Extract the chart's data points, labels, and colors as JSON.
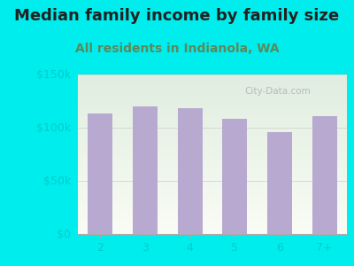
{
  "title": "Median family income by family size",
  "subtitle": "All residents in Indianola, WA",
  "categories": [
    "2",
    "3",
    "4",
    "5",
    "6",
    "7+"
  ],
  "values": [
    113000,
    120000,
    118000,
    108000,
    96000,
    111000
  ],
  "bar_color": "#b8a9d0",
  "background_outer": "#00eded",
  "ylim": [
    0,
    150000
  ],
  "yticks": [
    0,
    50000,
    100000,
    150000
  ],
  "ytick_labels": [
    "$0",
    "$50k",
    "$100k",
    "$150k"
  ],
  "title_fontsize": 13,
  "subtitle_fontsize": 10,
  "tick_fontsize": 9,
  "title_color": "#222222",
  "subtitle_color": "#5a8a5a",
  "tick_color": "#00cccc",
  "watermark": "City-Data.com"
}
